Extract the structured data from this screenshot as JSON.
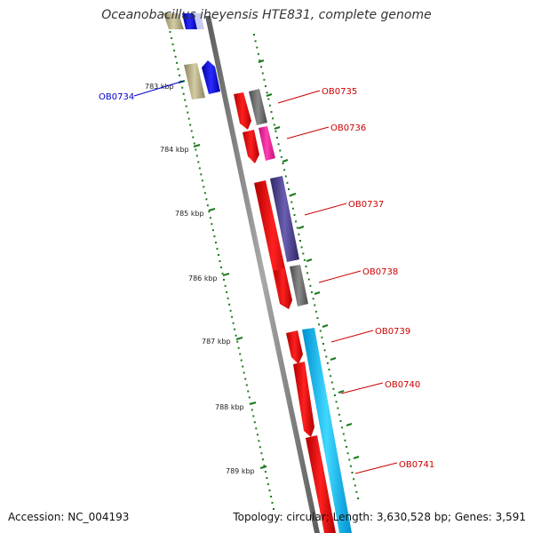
{
  "title": "Oceanobacillus iheyensis HTE831, complete genome",
  "scale_ticks": [
    "783 kbp",
    "784 kbp",
    "785 kbp",
    "786 kbp",
    "787 kbp",
    "788 kbp",
    "789 kbp"
  ],
  "gene_labels": [
    {
      "name": "OB0734",
      "color": "#0000cc"
    },
    {
      "name": "OB0735",
      "color": "#cc0000"
    },
    {
      "name": "OB0736",
      "color": "#cc0000"
    },
    {
      "name": "OB0737",
      "color": "#cc0000"
    },
    {
      "name": "OB0738",
      "color": "#cc0000"
    },
    {
      "name": "OB0739",
      "color": "#cc0000"
    },
    {
      "name": "OB0740",
      "color": "#cc0000"
    },
    {
      "name": "OB0741",
      "color": "#cc0000"
    }
  ],
  "footer": {
    "accession": "Accession: NC_004193",
    "summary": "Topology: circular; Length: 3,630,528 bp; Genes: 3,591"
  },
  "colors": {
    "backbone": "#808080",
    "scale_dots": "#1a7a1a",
    "gene_red": "#ff0000",
    "gene_blue": "#0000ff",
    "gene_khaki": "#b8b088",
    "gene_gray": "#707070",
    "gene_magenta": "#ff1493",
    "gene_slateblue": "#483d8b",
    "gene_cyan": "#00bfff"
  }
}
